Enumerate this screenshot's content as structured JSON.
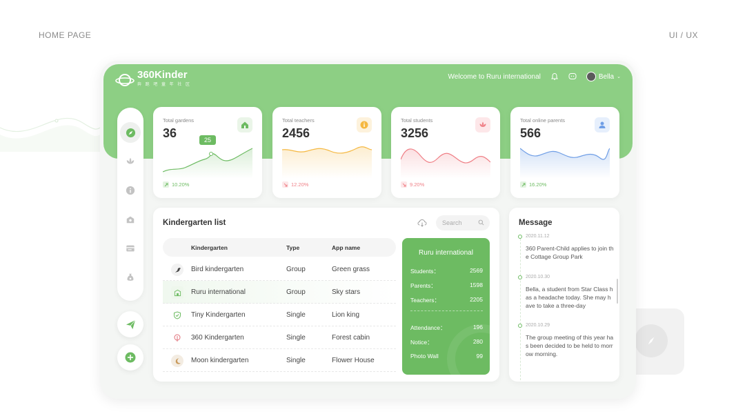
{
  "page": {
    "left_label": "HOME PAGE",
    "right_label": "UI / UX"
  },
  "app": {
    "brand": "360Kinder",
    "brand_sub": "奔 跑 吧 童 年 社 区",
    "welcome": "Welcome to Ruru international",
    "user_name": "Bella"
  },
  "colors": {
    "brand_green": "#8dcf84",
    "accent_green": "#6dbb62",
    "orange": "#f5b841",
    "red": "#ef7f86",
    "blue": "#6f9ee6"
  },
  "sidebar": {
    "items": [
      {
        "icon": "compass-icon"
      },
      {
        "icon": "lotus-icon"
      },
      {
        "icon": "info-icon"
      },
      {
        "icon": "school-icon"
      },
      {
        "icon": "card-icon"
      },
      {
        "icon": "money-bag-icon"
      }
    ],
    "send_icon": "paper-plane-icon",
    "add_icon": "plus-icon"
  },
  "stats": [
    {
      "title": "Total gardens",
      "value": "36",
      "change": "10.20%",
      "direction": "up",
      "tooltip": "25"
    },
    {
      "title": "Total teachers",
      "value": "2456",
      "change": "12.20%",
      "direction": "down"
    },
    {
      "title": "Total students",
      "value": "3256",
      "change": "9.20%",
      "direction": "down"
    },
    {
      "title": "Total online parents",
      "value": "566",
      "change": "16.20%",
      "direction": "up"
    }
  ],
  "kindergarten_list": {
    "title": "Kindergarten list",
    "search_placeholder": "Search",
    "columns": [
      "Kindergarten",
      "Type",
      "App name"
    ],
    "rows": [
      {
        "name": "Bird kindergarten",
        "type": "Group",
        "app": "Green grass"
      },
      {
        "name": "Ruru international",
        "type": "Group",
        "app": "Sky stars"
      },
      {
        "name": "Tiny Kindergarten",
        "type": "Single",
        "app": "Lion king"
      },
      {
        "name": "360 Kindergarten",
        "type": "Single",
        "app": "Forest cabin"
      },
      {
        "name": "Moon kindergarten",
        "type": "Single",
        "app": "Flower House"
      }
    ]
  },
  "detail": {
    "title": "Ruru international",
    "lines": [
      {
        "label": "Students：",
        "value": "2569"
      },
      {
        "label": "Parents：",
        "value": "1598"
      },
      {
        "label": "Teachers：",
        "value": "2205"
      },
      {
        "label": "Attendance：",
        "value": "196"
      },
      {
        "label": "Notice：",
        "value": "280"
      },
      {
        "label": "Photo Wall",
        "value": "99"
      }
    ]
  },
  "messages": {
    "title": "Message",
    "items": [
      {
        "date": "2020.11.12",
        "text": "360 Parent-Child applies to join the Cottage Group Park"
      },
      {
        "date": "2020.10.30",
        "text": "Bella, a student from Star Class has a headache today. She may  have to take a three-day"
      },
      {
        "date": "2020.10.29",
        "text": "The group meeting of this year has been decided to be held to morrow morning."
      }
    ]
  }
}
